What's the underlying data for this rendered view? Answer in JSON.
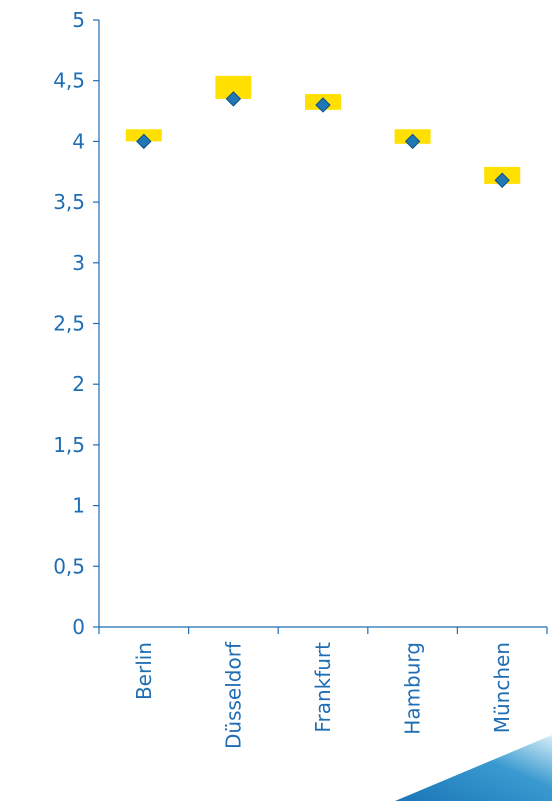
{
  "chart_data": {
    "type": "scatter",
    "categories": [
      "Berlin",
      "Düsseldorf",
      "Frankfurt",
      "Hamburg",
      "München"
    ],
    "ylim": [
      0,
      5
    ],
    "yticks": [
      "0",
      "0,5",
      "1",
      "1,5",
      "2",
      "2,5",
      "3",
      "3,5",
      "4",
      "4,5",
      "5"
    ],
    "series": [
      {
        "marker": "range-bar",
        "color": "#FFE000",
        "low": [
          4.0,
          4.35,
          4.26,
          3.98,
          3.65
        ],
        "high": [
          4.1,
          4.54,
          4.39,
          4.1,
          3.79
        ]
      },
      {
        "marker": "diamond",
        "color": "#1F77B4",
        "values": [
          4.0,
          4.35,
          4.3,
          4.0,
          3.68
        ]
      }
    ],
    "axis_color": "#1F6EB4",
    "grid": false,
    "legend": "none"
  }
}
